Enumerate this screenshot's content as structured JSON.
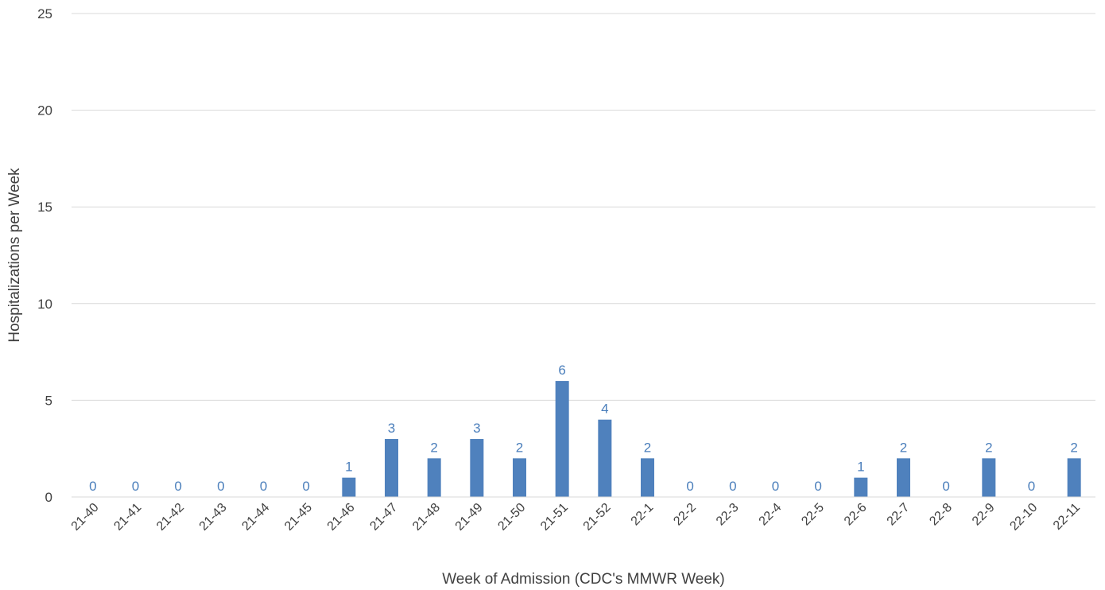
{
  "chart_data": {
    "type": "bar",
    "title": "",
    "xlabel": "Week of Admission (CDC's MMWR Week)",
    "ylabel": "Hospitalizations per Week",
    "ylim": [
      0,
      25
    ],
    "yticks": [
      0,
      5,
      10,
      15,
      20,
      25
    ],
    "grid": true,
    "legend": "none",
    "bar_color": "#4f81bd",
    "label_color": "#4a7ebb",
    "categories": [
      "21-40",
      "21-41",
      "21-42",
      "21-43",
      "21-44",
      "21-45",
      "21-46",
      "21-47",
      "21-48",
      "21-49",
      "21-50",
      "21-51",
      "21-52",
      "22-1",
      "22-2",
      "22-3",
      "22-4",
      "22-5",
      "22-6",
      "22-7",
      "22-8",
      "22-9",
      "22-10",
      "22-11"
    ],
    "values": [
      0,
      0,
      0,
      0,
      0,
      0,
      1,
      3,
      2,
      3,
      2,
      6,
      4,
      2,
      0,
      0,
      0,
      0,
      1,
      2,
      0,
      2,
      0,
      2
    ]
  }
}
